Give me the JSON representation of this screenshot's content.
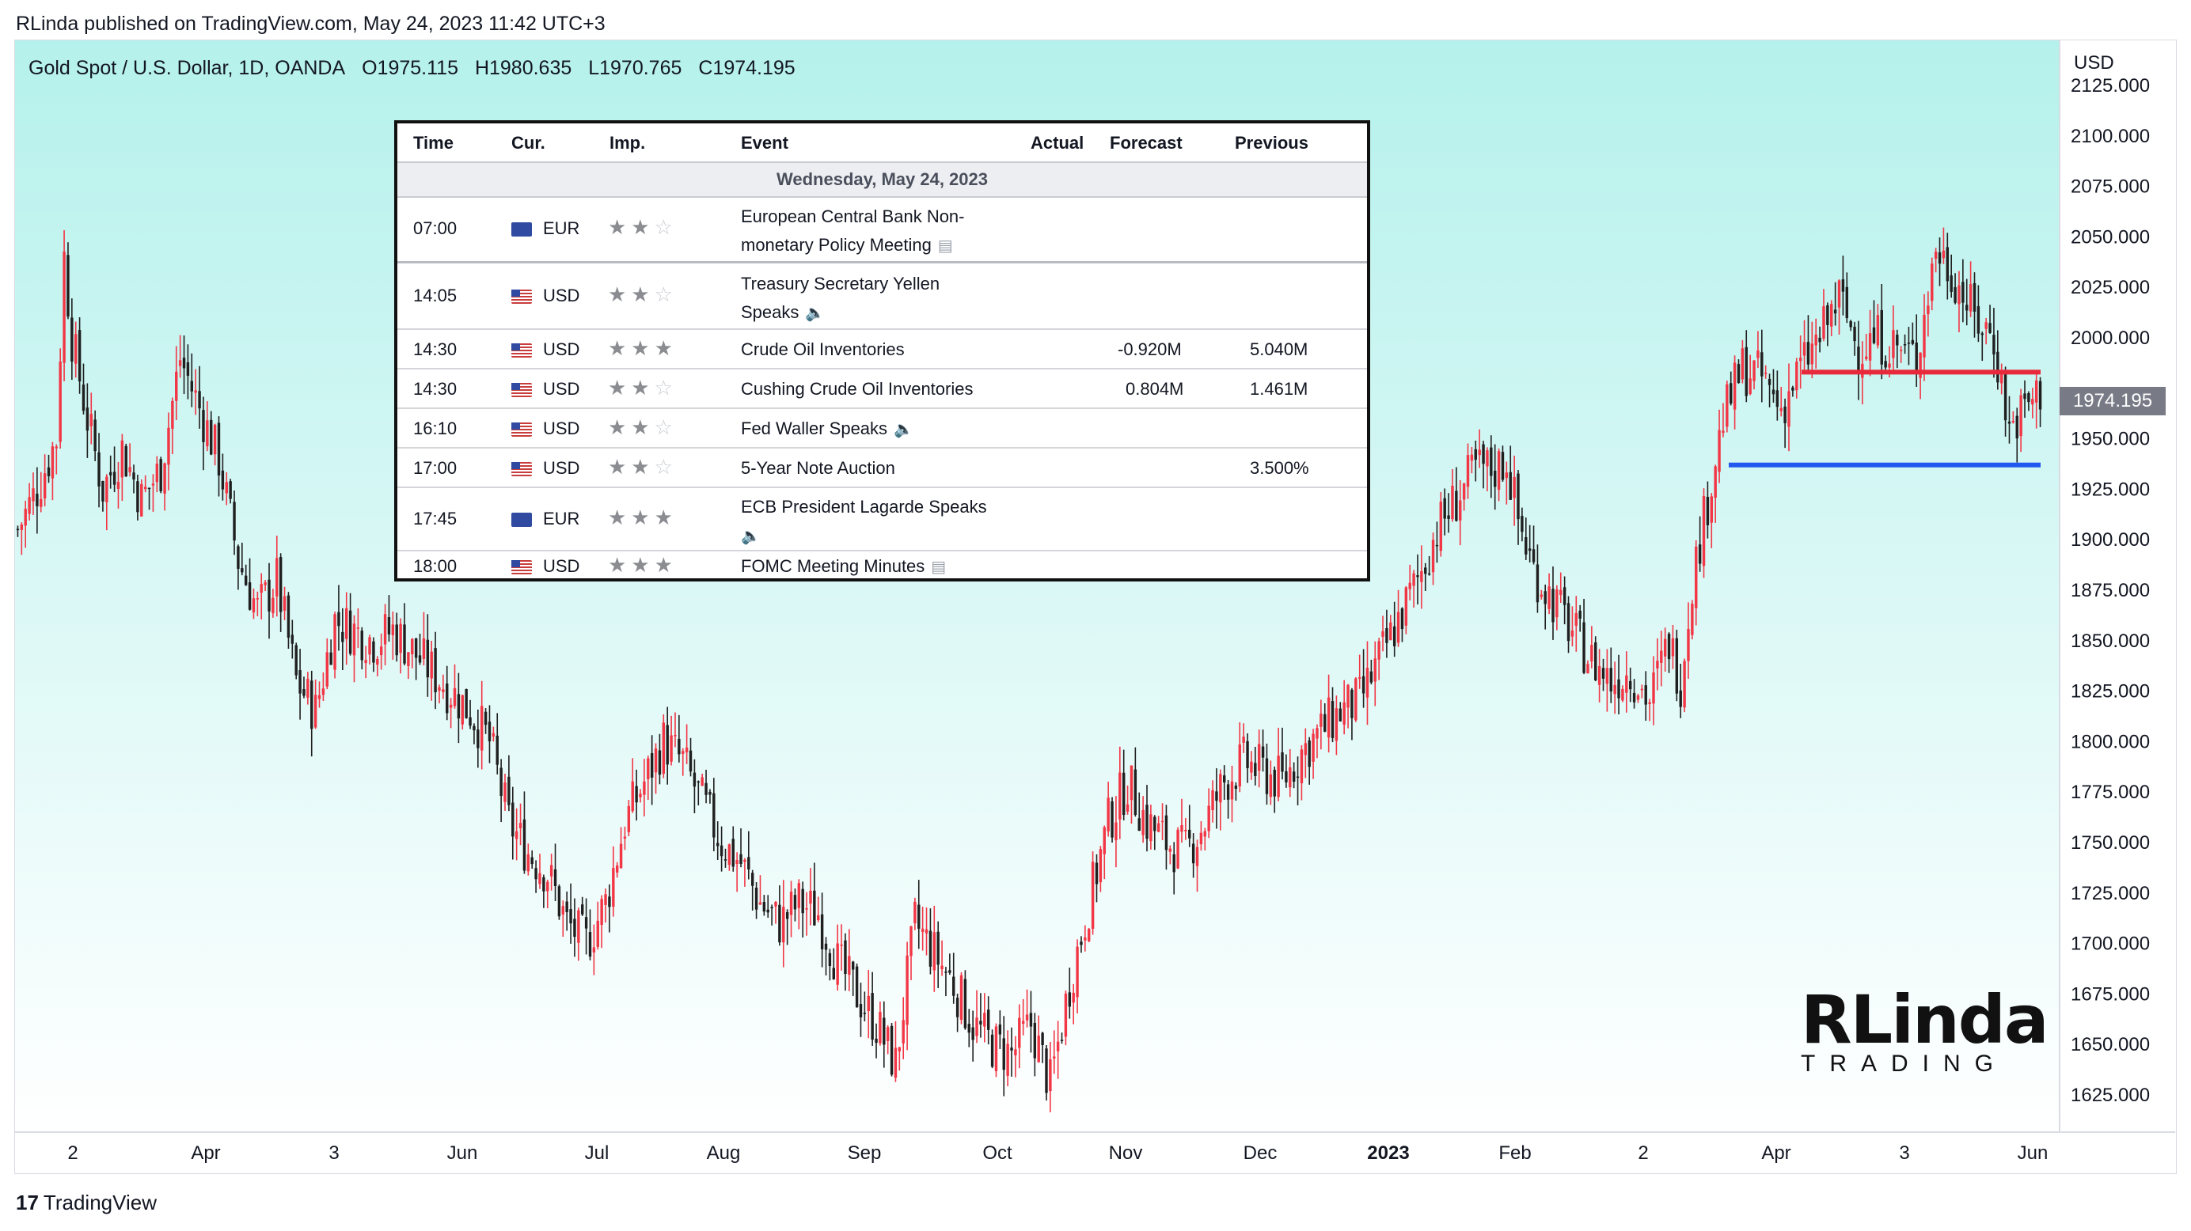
{
  "header": {
    "publisher_line": "RLinda published on TradingView.com, May 24, 2023 11:42 UTC+3"
  },
  "symbol": {
    "name": "Gold Spot / U.S. Dollar, 1D, OANDA",
    "open": "O1975.115",
    "high": "H1980.635",
    "low": "L1970.765",
    "close": "C1974.195"
  },
  "price_axis": {
    "unit": "USD",
    "last_price": "1974.195",
    "ticks": [
      "2125.000",
      "2100.000",
      "2075.000",
      "2050.000",
      "2025.000",
      "2000.000",
      "1950.000",
      "1925.000",
      "1900.000",
      "1875.000",
      "1850.000",
      "1825.000",
      "1800.000",
      "1775.000",
      "1750.000",
      "1725.000",
      "1700.000",
      "1675.000",
      "1650.000",
      "1625.000"
    ]
  },
  "time_axis": {
    "ticks": [
      "2",
      "Apr",
      "3",
      "Jun",
      "Jul",
      "Aug",
      "Sep",
      "Oct",
      "Nov",
      "Dec",
      "2023",
      "Feb",
      "2",
      "Apr",
      "3",
      "Jun"
    ]
  },
  "calendar": {
    "headers": {
      "time": "Time",
      "cur": "Cur.",
      "imp": "Imp.",
      "event": "Event",
      "actual": "Actual",
      "forecast": "Forecast",
      "previous": "Previous"
    },
    "date": "Wednesday, May 24, 2023",
    "rows": [
      {
        "time": "07:00",
        "cur": "EUR",
        "stars": 2,
        "event_l1": "European Central Bank Non-",
        "event_l2": "monetary Policy Meeting",
        "icon": "document-icon",
        "forecast": "",
        "previous": ""
      },
      {
        "time": "14:05",
        "cur": "USD",
        "stars": 2,
        "event_l1": "Treasury Secretary Yellen",
        "event_l2": "Speaks",
        "icon": "speaker-icon",
        "forecast": "",
        "previous": ""
      },
      {
        "time": "14:30",
        "cur": "USD",
        "stars": 3,
        "event_l1": "Crude Oil Inventories",
        "event_l2": "",
        "icon": "",
        "forecast": "-0.920M",
        "previous": "5.040M"
      },
      {
        "time": "14:30",
        "cur": "USD",
        "stars": 2,
        "event_l1": "Cushing Crude Oil Inventories",
        "event_l2": "",
        "icon": "",
        "forecast": "0.804M",
        "previous": "1.461M"
      },
      {
        "time": "16:10",
        "cur": "USD",
        "stars": 2,
        "event_l1": "Fed Waller Speaks",
        "event_l2": "",
        "icon": "speaker-icon",
        "forecast": "",
        "previous": ""
      },
      {
        "time": "17:00",
        "cur": "USD",
        "stars": 2,
        "event_l1": "5-Year Note Auction",
        "event_l2": "",
        "icon": "",
        "forecast": "",
        "previous": "3.500%"
      },
      {
        "time": "17:45",
        "cur": "EUR",
        "stars": 3,
        "event_l1": "ECB President Lagarde Speaks",
        "event_l2": "",
        "icon": "speaker-icon",
        "forecast": "",
        "previous": ""
      },
      {
        "time": "18:00",
        "cur": "USD",
        "stars": 3,
        "event_l1": "FOMC Meeting Minutes",
        "event_l2": "",
        "icon": "document-icon",
        "forecast": "",
        "previous": ""
      }
    ]
  },
  "logo": {
    "big": "RLinda",
    "small": "TRADING"
  },
  "footer": {
    "brand": "TradingView",
    "brand_mark": "17"
  },
  "colors": {
    "up": "#f23645",
    "down": "#1f1f1f",
    "bg_top": "#b5f1ec",
    "bg_bottom": "#ffffff",
    "resistance": "#e8293b",
    "support": "#2058f0"
  },
  "chart_data": {
    "type": "candlestick",
    "title": "Gold Spot / U.S. Dollar, 1D, OANDA",
    "ylabel": "USD",
    "ylim": [
      1610,
      2140
    ],
    "x_ticks": [
      "2",
      "Apr",
      "3",
      "Jun",
      "Jul",
      "Aug",
      "Sep",
      "Oct",
      "Nov",
      "Dec",
      "2023",
      "Feb",
      "2",
      "Apr",
      "3",
      "Jun"
    ],
    "path_points": [
      [
        0,
        1905
      ],
      [
        5,
        1925
      ],
      [
        10,
        1950
      ],
      [
        12,
        2040
      ],
      [
        14,
        2000
      ],
      [
        18,
        1960
      ],
      [
        22,
        1925
      ],
      [
        27,
        1945
      ],
      [
        32,
        1920
      ],
      [
        37,
        1935
      ],
      [
        42,
        1990
      ],
      [
        47,
        1965
      ],
      [
        52,
        1940
      ],
      [
        57,
        1890
      ],
      [
        62,
        1865
      ],
      [
        67,
        1880
      ],
      [
        72,
        1830
      ],
      [
        77,
        1815
      ],
      [
        82,
        1860
      ],
      [
        87,
        1855
      ],
      [
        92,
        1850
      ],
      [
        97,
        1855
      ],
      [
        102,
        1845
      ],
      [
        107,
        1835
      ],
      [
        112,
        1825
      ],
      [
        117,
        1815
      ],
      [
        122,
        1800
      ],
      [
        127,
        1760
      ],
      [
        132,
        1745
      ],
      [
        137,
        1735
      ],
      [
        142,
        1710
      ],
      [
        147,
        1700
      ],
      [
        152,
        1720
      ],
      [
        157,
        1760
      ],
      [
        162,
        1780
      ],
      [
        167,
        1800
      ],
      [
        172,
        1790
      ],
      [
        177,
        1770
      ],
      [
        182,
        1750
      ],
      [
        187,
        1740
      ],
      [
        192,
        1720
      ],
      [
        197,
        1710
      ],
      [
        202,
        1720
      ],
      [
        207,
        1715
      ],
      [
        212,
        1690
      ],
      [
        217,
        1675
      ],
      [
        222,
        1660
      ],
      [
        227,
        1640
      ],
      [
        232,
        1710
      ],
      [
        237,
        1695
      ],
      [
        242,
        1680
      ],
      [
        247,
        1660
      ],
      [
        252,
        1650
      ],
      [
        257,
        1645
      ],
      [
        262,
        1660
      ],
      [
        267,
        1630
      ],
      [
        272,
        1680
      ],
      [
        277,
        1720
      ],
      [
        282,
        1760
      ],
      [
        287,
        1780
      ],
      [
        292,
        1760
      ],
      [
        297,
        1750
      ],
      [
        302,
        1745
      ],
      [
        307,
        1760
      ],
      [
        312,
        1780
      ],
      [
        317,
        1790
      ],
      [
        322,
        1785
      ],
      [
        327,
        1780
      ],
      [
        332,
        1795
      ],
      [
        337,
        1805
      ],
      [
        342,
        1815
      ],
      [
        347,
        1820
      ],
      [
        352,
        1840
      ],
      [
        357,
        1860
      ],
      [
        362,
        1880
      ],
      [
        367,
        1905
      ],
      [
        372,
        1920
      ],
      [
        377,
        1935
      ],
      [
        382,
        1935
      ],
      [
        385,
        1940
      ],
      [
        388,
        1910
      ],
      [
        392,
        1885
      ],
      [
        397,
        1870
      ],
      [
        402,
        1855
      ],
      [
        407,
        1840
      ],
      [
        412,
        1830
      ],
      [
        417,
        1835
      ],
      [
        422,
        1820
      ],
      [
        427,
        1850
      ],
      [
        430,
        1830
      ],
      [
        433,
        1880
      ],
      [
        437,
        1920
      ],
      [
        441,
        1960
      ],
      [
        446,
        1985
      ],
      [
        451,
        1980
      ],
      [
        456,
        1965
      ],
      [
        461,
        1985
      ],
      [
        466,
        2000
      ],
      [
        471,
        2020
      ],
      [
        476,
        1995
      ],
      [
        481,
        2000
      ],
      [
        486,
        1995
      ],
      [
        491,
        1990
      ],
      [
        496,
        2045
      ],
      [
        501,
        2030
      ],
      [
        506,
        2010
      ],
      [
        511,
        2000
      ],
      [
        515,
        1955
      ],
      [
        519,
        1965
      ],
      [
        523,
        1974
      ]
    ],
    "resistance_level": 1983,
    "support_level": 1937,
    "last": 1974.195,
    "series": [
      {
        "name": "OHLC",
        "open": 1975.115,
        "high": 1980.635,
        "low": 1970.765,
        "close": 1974.195
      }
    ]
  }
}
